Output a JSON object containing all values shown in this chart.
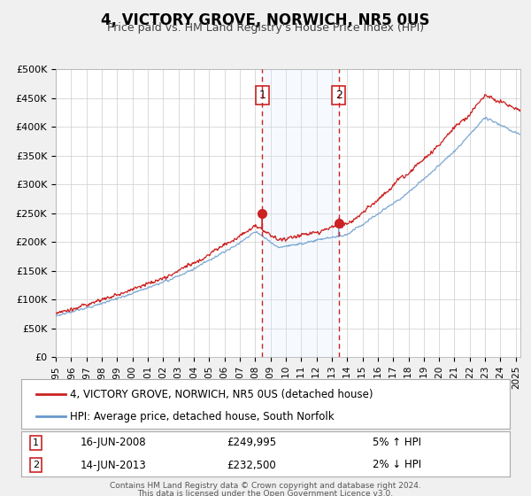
{
  "title": "4, VICTORY GROVE, NORWICH, NR5 0US",
  "subtitle": "Price paid vs. HM Land Registry's House Price Index (HPI)",
  "legend_line1": "4, VICTORY GROVE, NORWICH, NR5 0US (detached house)",
  "legend_line2": "HPI: Average price, detached house, South Norfolk",
  "marker1_label": "1",
  "marker1_date": "16-JUN-2008",
  "marker1_price": "£249,995",
  "marker1_hpi": "5% ↑ HPI",
  "marker2_label": "2",
  "marker2_date": "14-JUN-2013",
  "marker2_price": "£232,500",
  "marker2_hpi": "2% ↓ HPI",
  "footer1": "Contains HM Land Registry data © Crown copyright and database right 2024.",
  "footer2": "This data is licensed under the Open Government Licence v3.0.",
  "xmin": 1995.0,
  "xmax": 2025.3,
  "ymin": 0,
  "ymax": 500000,
  "yticks": [
    0,
    50000,
    100000,
    150000,
    200000,
    250000,
    300000,
    350000,
    400000,
    450000,
    500000
  ],
  "ytick_labels": [
    "£0",
    "£50K",
    "£100K",
    "£150K",
    "£200K",
    "£250K",
    "£300K",
    "£350K",
    "£400K",
    "£450K",
    "£500K"
  ],
  "marker1_x": 2008.46,
  "marker1_y": 249995,
  "marker2_x": 2013.45,
  "marker2_y": 232500,
  "shade_xmin": 2008.46,
  "shade_xmax": 2013.45,
  "vline1_x": 2008.46,
  "vline2_x": 2013.45,
  "red_color": "#cc2222",
  "blue_color": "#6699cc",
  "shade_color": "#ddeeff",
  "grid_color": "#cccccc",
  "bg_color": "#f8f8f8",
  "plot_bg": "#ffffff"
}
